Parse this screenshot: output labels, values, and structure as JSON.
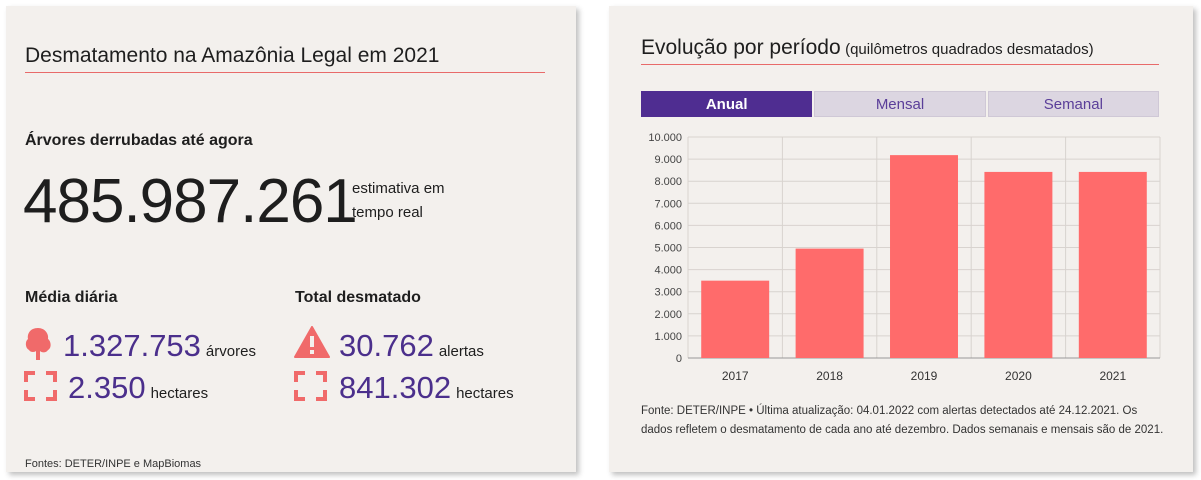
{
  "left": {
    "title": "Desmatamento na Amazônia Legal em 2021",
    "trees_heading": "Árvores derrubadas até agora",
    "trees_count": "485.987.261",
    "trees_note": "estimativa em tempo real",
    "daily_heading": "Média diária",
    "daily_trees": "1.327.753",
    "daily_trees_unit": "árvores",
    "daily_hectares": "2.350",
    "daily_hectares_unit": "hectares",
    "total_heading": "Total desmatado",
    "total_alerts": "30.762",
    "total_alerts_unit": "alertas",
    "total_hectares": "841.302",
    "total_hectares_unit": "hectares",
    "source": "Fontes: DETER/INPE e MapBiomas",
    "icons": [
      "tree-icon",
      "area-frame-icon",
      "warning-icon",
      "area-frame-icon"
    ]
  },
  "right": {
    "title": "Evolução por período",
    "title_sub": "(quilômetros quadrados desmatados)",
    "tabs": [
      {
        "label": "Anual",
        "active": true
      },
      {
        "label": "Mensal",
        "active": false
      },
      {
        "label": "Semanal",
        "active": false
      }
    ],
    "source": "Fonte: DETER/INPE • Última atualização: 04.01.2022 com alertas detectados até 24.12.2021. Os dados refletem o desmatamento de cada ano até dezembro. Dados semanais e mensais são de 2021."
  },
  "colors": {
    "bar": "#ff6b6b",
    "accent_purple": "#4f2d91",
    "number_purple": "#4b2f8c",
    "icon_red": "#f06a6a",
    "card_bg": "#f3f0ed"
  },
  "chart_data": {
    "type": "bar",
    "categories": [
      "2017",
      "2018",
      "2019",
      "2020",
      "2021"
    ],
    "values": [
      3500,
      4950,
      9180,
      8420,
      8420
    ],
    "ylim": [
      0,
      10000
    ],
    "yticks": [
      0,
      1000,
      2000,
      3000,
      4000,
      5000,
      6000,
      7000,
      8000,
      9000,
      10000
    ],
    "ytick_labels": [
      "0",
      "1.000",
      "2.000",
      "3.000",
      "4.000",
      "5.000",
      "6.000",
      "7.000",
      "8.000",
      "9.000",
      "10.000"
    ],
    "grid": true,
    "xlabel": "",
    "ylabel": ""
  }
}
